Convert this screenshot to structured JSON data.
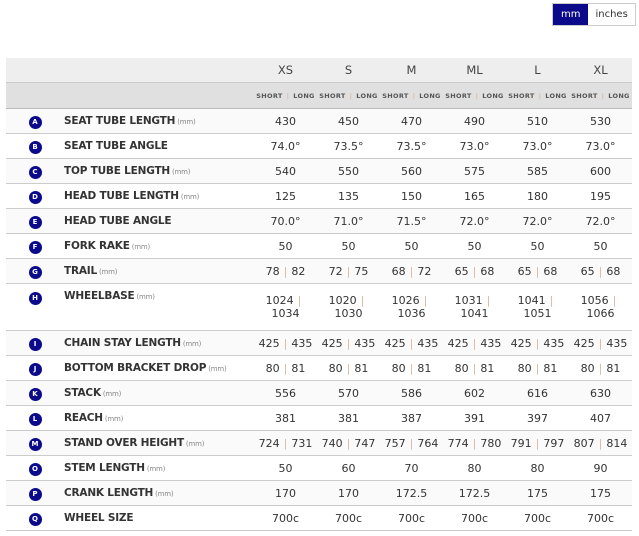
{
  "units": {
    "mm": "mm",
    "inches": "inches",
    "selected": "mm"
  },
  "sizes": [
    "XS",
    "S",
    "M",
    "ML",
    "L",
    "XL"
  ],
  "sub": {
    "short": "SHORT",
    "long": "LONG",
    "sep": "|"
  },
  "accent": "#0a0a8a",
  "rows": [
    {
      "letter": "A",
      "label": "SEAT TUBE LENGTH",
      "unit": "(mm)",
      "values": [
        "430",
        "450",
        "470",
        "490",
        "510",
        "530"
      ]
    },
    {
      "letter": "B",
      "label": "SEAT TUBE ANGLE",
      "unit": "",
      "values": [
        "74.0°",
        "73.5°",
        "73.5°",
        "73.0°",
        "73.0°",
        "73.0°"
      ]
    },
    {
      "letter": "C",
      "label": "TOP TUBE LENGTH",
      "unit": "(mm)",
      "values": [
        "540",
        "550",
        "560",
        "575",
        "585",
        "600"
      ]
    },
    {
      "letter": "D",
      "label": "HEAD TUBE LENGTH",
      "unit": "(mm)",
      "values": [
        "125",
        "135",
        "150",
        "165",
        "180",
        "195"
      ]
    },
    {
      "letter": "E",
      "label": "HEAD TUBE ANGLE",
      "unit": "",
      "values": [
        "70.0°",
        "71.0°",
        "71.5°",
        "72.0°",
        "72.0°",
        "72.0°"
      ]
    },
    {
      "letter": "F",
      "label": "FORK RAKE",
      "unit": "(mm)",
      "values": [
        "50",
        "50",
        "50",
        "50",
        "50",
        "50"
      ]
    },
    {
      "letter": "G",
      "label": "TRAIL",
      "unit": "(mm)",
      "values": [
        [
          "78",
          "82"
        ],
        [
          "72",
          "75"
        ],
        [
          "68",
          "72"
        ],
        [
          "65",
          "68"
        ],
        [
          "65",
          "68"
        ],
        [
          "65",
          "68"
        ]
      ]
    },
    {
      "letter": "H",
      "label": "WHEELBASE",
      "unit": "(mm)",
      "values": [
        [
          "1024",
          "1034"
        ],
        [
          "1020",
          "1030"
        ],
        [
          "1026",
          "1036"
        ],
        [
          "1031",
          "1041"
        ],
        [
          "1041",
          "1051"
        ],
        [
          "1056",
          "1066"
        ]
      ]
    },
    {
      "letter": "I",
      "label": "CHAIN STAY LENGTH",
      "unit": "(mm)",
      "values": [
        [
          "425",
          "435"
        ],
        [
          "425",
          "435"
        ],
        [
          "425",
          "435"
        ],
        [
          "425",
          "435"
        ],
        [
          "425",
          "435"
        ],
        [
          "425",
          "435"
        ]
      ]
    },
    {
      "letter": "J",
      "label": "BOTTOM BRACKET DROP",
      "unit": "(mm)",
      "values": [
        [
          "80",
          "81"
        ],
        [
          "80",
          "81"
        ],
        [
          "80",
          "81"
        ],
        [
          "80",
          "81"
        ],
        [
          "80",
          "81"
        ],
        [
          "80",
          "81"
        ]
      ]
    },
    {
      "letter": "K",
      "label": "STACK",
      "unit": "(mm)",
      "values": [
        "556",
        "570",
        "586",
        "602",
        "616",
        "630"
      ]
    },
    {
      "letter": "L",
      "label": "REACH",
      "unit": "(mm)",
      "values": [
        "381",
        "381",
        "387",
        "391",
        "397",
        "407"
      ]
    },
    {
      "letter": "M",
      "label": "STAND OVER HEIGHT",
      "unit": "(mm)",
      "values": [
        [
          "724",
          "731"
        ],
        [
          "740",
          "747"
        ],
        [
          "757",
          "764"
        ],
        [
          "774",
          "780"
        ],
        [
          "791",
          "797"
        ],
        [
          "807",
          "814"
        ]
      ]
    },
    {
      "letter": "O",
      "label": "STEM LENGTH",
      "unit": "(mm)",
      "values": [
        "50",
        "60",
        "70",
        "80",
        "80",
        "90"
      ]
    },
    {
      "letter": "P",
      "label": "CRANK LENGTH",
      "unit": "(mm)",
      "values": [
        "170",
        "170",
        "172.5",
        "172.5",
        "175",
        "175"
      ]
    },
    {
      "letter": "Q",
      "label": "WHEEL SIZE",
      "unit": "",
      "values": [
        "700c",
        "700c",
        "700c",
        "700c",
        "700c",
        "700c"
      ]
    }
  ]
}
